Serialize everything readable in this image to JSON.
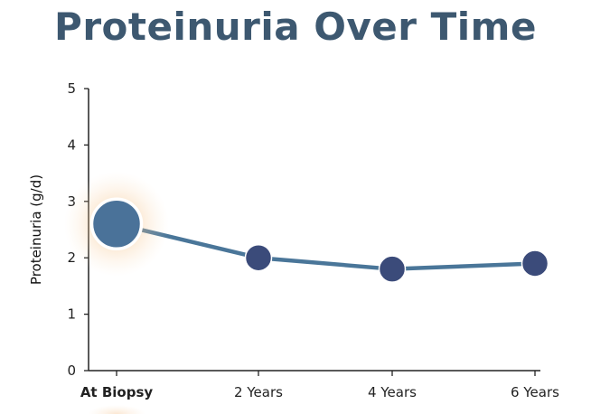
{
  "chart_data": {
    "type": "line",
    "title": "Proteinuria Over Time",
    "xlabel": "",
    "ylabel": "Proteinuria (g/d)",
    "categories": [
      "At Biopsy",
      "2 Years",
      "4 Years",
      "6 Years"
    ],
    "values": [
      2.6,
      2.0,
      1.8,
      1.9
    ],
    "ylim": [
      0,
      5
    ],
    "yticks": [
      "0",
      "1",
      "2",
      "3",
      "4",
      "5"
    ],
    "grid": false,
    "highlighted_category": "At Biopsy",
    "colors": {
      "title": "#3d5870",
      "line": "#4a7699",
      "marker": "#3b4b7a",
      "highlight_marker": "#4a7299",
      "highlight_label": "#3b5a8a",
      "glow": "#f3b46a"
    }
  }
}
